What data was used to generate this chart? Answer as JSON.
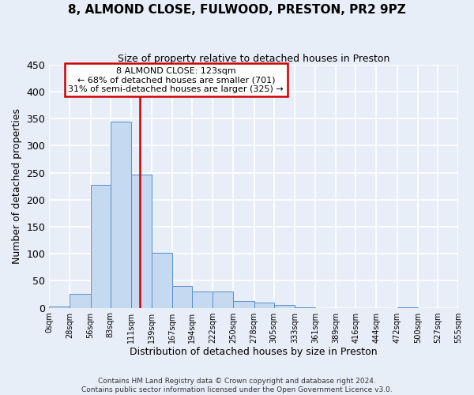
{
  "title": "8, ALMOND CLOSE, FULWOOD, PRESTON, PR2 9PZ",
  "subtitle": "Size of property relative to detached houses in Preston",
  "xlabel": "Distribution of detached houses by size in Preston",
  "ylabel": "Number of detached properties",
  "bar_color": "#c5d9f0",
  "bar_edge_color": "#5b8fc9",
  "background_color": "#e8eef8",
  "grid_color": "#ffffff",
  "bin_edges": [
    0,
    28,
    56,
    83,
    111,
    139,
    167,
    194,
    222,
    250,
    278,
    305,
    333,
    361,
    389,
    416,
    444,
    472,
    500,
    527,
    555
  ],
  "bin_labels": [
    "0sqm",
    "28sqm",
    "56sqm",
    "83sqm",
    "111sqm",
    "139sqm",
    "167sqm",
    "194sqm",
    "222sqm",
    "250sqm",
    "278sqm",
    "305sqm",
    "333sqm",
    "361sqm",
    "389sqm",
    "416sqm",
    "444sqm",
    "472sqm",
    "500sqm",
    "527sqm",
    "555sqm"
  ],
  "bar_heights": [
    2,
    25,
    228,
    345,
    247,
    101,
    40,
    30,
    30,
    13,
    9,
    5,
    1,
    0,
    0,
    0,
    0,
    1,
    0,
    0
  ],
  "ylim": [
    0,
    450
  ],
  "yticks": [
    0,
    50,
    100,
    150,
    200,
    250,
    300,
    350,
    400,
    450
  ],
  "property_line_x": 123,
  "property_line_color": "#cc0000",
  "annotation_title": "8 ALMOND CLOSE: 123sqm",
  "annotation_line1": "← 68% of detached houses are smaller (701)",
  "annotation_line2": "31% of semi-detached houses are larger (325) →",
  "annotation_box_color": "#ffffff",
  "annotation_box_edge_color": "#cc0000",
  "footer_line1": "Contains HM Land Registry data © Crown copyright and database right 2024.",
  "footer_line2": "Contains public sector information licensed under the Open Government Licence v3.0."
}
